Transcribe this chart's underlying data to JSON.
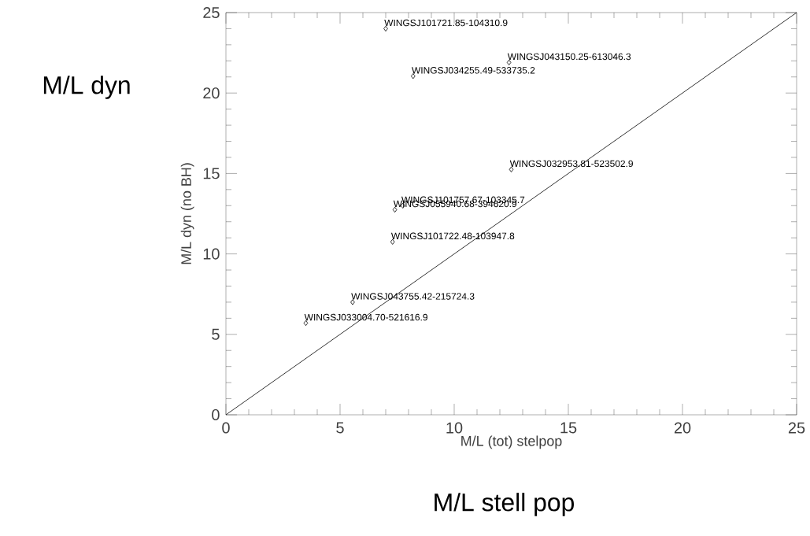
{
  "chart_data": {
    "type": "scatter",
    "xlabel": "M/L (tot) stelpop",
    "ylabel": "M/L dyn (no BH)",
    "xlim": [
      0,
      25
    ],
    "ylim": [
      0,
      25
    ],
    "xticks": [
      0,
      5,
      10,
      15,
      20,
      25
    ],
    "yticks": [
      0,
      5,
      10,
      15,
      20,
      25
    ],
    "grid": false,
    "marker": "diamond",
    "series": [
      {
        "color": "#000000",
        "x": [
          7.0,
          12.4,
          8.2,
          12.5,
          7.75,
          7.4,
          7.3,
          5.55,
          3.5
        ],
        "values": [
          24.0,
          21.9,
          21.05,
          15.25,
          13.0,
          12.75,
          10.75,
          7.0,
          5.7
        ]
      },
      {
        "type": "line",
        "color": "#000000",
        "marker": "none",
        "x": [
          0,
          25
        ],
        "values": [
          0,
          25
        ]
      }
    ],
    "annotations": [
      {
        "text": "WINGSJ101721.85-104310.9",
        "x": 7.0,
        "y": 24.0
      },
      {
        "text": "WINGSJ043150.25-613046.3",
        "x": 12.4,
        "y": 21.9
      },
      {
        "text": "WINGSJ034255.49-533735.2",
        "x": 8.2,
        "y": 21.05
      },
      {
        "text": "WINGSJ032953.81-523502.9",
        "x": 12.5,
        "y": 15.25
      },
      {
        "text": "WINGSJ101757.67-103345.7",
        "x": 7.75,
        "y": 13.0
      },
      {
        "text": "WINGSJ055940.68-394620.9",
        "x": 7.4,
        "y": 12.75
      },
      {
        "text": "WINGSJ101722.48-103947.8",
        "x": 7.3,
        "y": 10.75
      },
      {
        "text": "WINGSJ043755.42-215724.3",
        "x": 5.55,
        "y": 7.0
      },
      {
        "text": "WINGSJ033004.70-521616.9",
        "x": 3.5,
        "y": 5.7
      },
      "M/L dyn",
      "M/L stell pop"
    ]
  }
}
